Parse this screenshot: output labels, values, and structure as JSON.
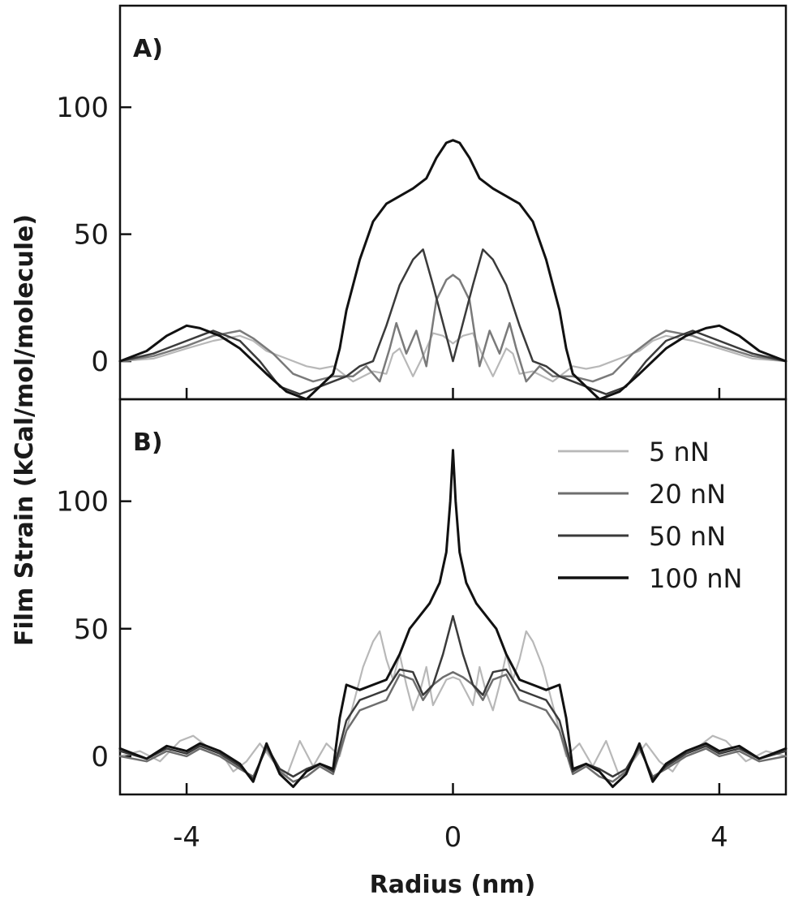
{
  "chart_data": [
    {
      "type": "line",
      "panel_label": "A)",
      "ylabel": "Film Strain (kCal/mol/molecule)",
      "xlabel": "Radius (nm)",
      "xlim": [
        -5,
        5
      ],
      "ylim": [
        -15,
        140
      ],
      "yticks": [
        "0",
        "50",
        "100"
      ],
      "xticks": [
        "-4",
        "0",
        "4"
      ],
      "series": [
        {
          "name": "5 nN",
          "color": "#b8b8b8",
          "width": 2.2,
          "x": [
            -5,
            -4.5,
            -4,
            -3.6,
            -3.2,
            -3,
            -2.8,
            -2.5,
            -2.2,
            -2,
            -1.8,
            -1.5,
            -1.2,
            -1,
            -0.9,
            -0.8,
            -0.6,
            -0.45,
            -0.3,
            -0.15,
            0,
            0.15,
            0.3,
            0.45,
            0.6,
            0.8,
            0.9,
            1,
            1.2,
            1.5,
            1.8,
            2,
            2.2,
            2.5,
            2.8,
            3,
            3.2,
            3.6,
            4,
            4.5,
            5
          ],
          "y": [
            0,
            1,
            5,
            8,
            10,
            8,
            4,
            1,
            -2,
            -3,
            -2,
            -8,
            -4,
            -5,
            3,
            5,
            -6,
            2,
            11,
            10,
            7,
            10,
            11,
            2,
            -6,
            5,
            3,
            -5,
            -4,
            -8,
            -2,
            -3,
            -2,
            1,
            4,
            8,
            10,
            8,
            5,
            1,
            0
          ]
        },
        {
          "name": "20 nN",
          "color": "#7a7a7a",
          "width": 2.5,
          "x": [
            -5,
            -4.5,
            -4,
            -3.6,
            -3.2,
            -3,
            -2.7,
            -2.4,
            -2.1,
            -1.8,
            -1.5,
            -1.3,
            -1.1,
            -0.95,
            -0.85,
            -0.7,
            -0.55,
            -0.4,
            -0.25,
            -0.1,
            0,
            0.1,
            0.25,
            0.4,
            0.55,
            0.7,
            0.85,
            0.95,
            1.1,
            1.3,
            1.5,
            1.8,
            2.1,
            2.4,
            2.7,
            3,
            3.2,
            3.6,
            4,
            4.5,
            5
          ],
          "y": [
            0,
            2,
            6,
            10,
            12,
            9,
            3,
            -5,
            -8,
            -6,
            -6,
            -2,
            -8,
            5,
            15,
            3,
            12,
            -2,
            24,
            32,
            34,
            32,
            24,
            -2,
            12,
            3,
            15,
            5,
            -8,
            -2,
            -6,
            -6,
            -8,
            -5,
            3,
            9,
            12,
            10,
            6,
            2,
            0
          ]
        },
        {
          "name": "50 nN",
          "color": "#3a3a3a",
          "width": 2.5,
          "x": [
            -5,
            -4.5,
            -4,
            -3.6,
            -3.2,
            -2.9,
            -2.6,
            -2.3,
            -2,
            -1.8,
            -1.6,
            -1.4,
            -1.2,
            -1,
            -0.8,
            -0.6,
            -0.45,
            -0.3,
            -0.15,
            0,
            0.15,
            0.3,
            0.45,
            0.6,
            0.8,
            1,
            1.2,
            1.4,
            1.6,
            1.8,
            2,
            2.3,
            2.6,
            2.9,
            3.2,
            3.6,
            4,
            4.5,
            5
          ],
          "y": [
            0,
            3,
            8,
            12,
            8,
            0,
            -10,
            -13,
            -10,
            -8,
            -6,
            -2,
            0,
            14,
            30,
            40,
            44,
            30,
            15,
            0,
            15,
            30,
            44,
            40,
            30,
            14,
            0,
            -2,
            -6,
            -8,
            -10,
            -13,
            -10,
            0,
            8,
            12,
            8,
            3,
            0
          ]
        },
        {
          "name": "100 nN",
          "color": "#111111",
          "width": 3,
          "x": [
            -5,
            -4.6,
            -4.3,
            -4,
            -3.8,
            -3.5,
            -3.2,
            -3,
            -2.8,
            -2.5,
            -2.2,
            -2,
            -1.8,
            -1.7,
            -1.6,
            -1.4,
            -1.2,
            -1,
            -0.8,
            -0.6,
            -0.4,
            -0.25,
            -0.1,
            0,
            0.1,
            0.25,
            0.4,
            0.6,
            0.8,
            1,
            1.2,
            1.4,
            1.6,
            1.7,
            1.8,
            2,
            2.2,
            2.5,
            2.8,
            3,
            3.2,
            3.5,
            3.8,
            4,
            4.3,
            4.6,
            5
          ],
          "y": [
            0,
            4,
            10,
            14,
            13,
            10,
            5,
            0,
            -5,
            -12,
            -15,
            -10,
            -5,
            5,
            20,
            40,
            55,
            62,
            65,
            68,
            72,
            80,
            86,
            87,
            86,
            80,
            72,
            68,
            65,
            62,
            55,
            40,
            20,
            5,
            -5,
            -10,
            -15,
            -12,
            -5,
            0,
            5,
            10,
            13,
            14,
            10,
            4,
            0
          ]
        }
      ]
    },
    {
      "type": "line",
      "panel_label": "B)",
      "ylabel": "Film Strain (kCal/mol/molecule)",
      "xlabel": "Radius (nm)",
      "xlim": [
        -5,
        5
      ],
      "ylim": [
        -15,
        140
      ],
      "yticks": [
        "0",
        "50",
        "100"
      ],
      "xticks": [
        "-4",
        "0",
        "4"
      ],
      "legend": {
        "position": "top-right",
        "entries": [
          "5 nN",
          "20 nN",
          "50 nN",
          "100 nN"
        ]
      },
      "series": [
        {
          "name": "5 nN",
          "color": "#b8b8b8",
          "width": 2.2,
          "x": [
            -5,
            -4.7,
            -4.4,
            -4.1,
            -3.9,
            -3.7,
            -3.5,
            -3.3,
            -3.1,
            -2.9,
            -2.7,
            -2.5,
            -2.3,
            -2.1,
            -1.9,
            -1.7,
            -1.5,
            -1.35,
            -1.2,
            -1.1,
            -1,
            -0.9,
            -0.8,
            -0.7,
            -0.6,
            -0.5,
            -0.4,
            -0.3,
            -0.2,
            -0.1,
            0,
            0.1,
            0.2,
            0.3,
            0.4,
            0.5,
            0.6,
            0.7,
            0.8,
            0.9,
            1,
            1.1,
            1.2,
            1.35,
            1.5,
            1.7,
            1.9,
            2.1,
            2.3,
            2.5,
            2.7,
            2.9,
            3.1,
            3.3,
            3.5,
            3.7,
            3.9,
            4.1,
            4.4,
            4.7,
            5
          ],
          "y": [
            0,
            2,
            -2,
            6,
            8,
            4,
            2,
            -6,
            -2,
            5,
            -2,
            -8,
            6,
            -4,
            5,
            0,
            20,
            35,
            45,
            49,
            38,
            30,
            40,
            28,
            18,
            25,
            35,
            20,
            25,
            30,
            31,
            30,
            25,
            20,
            35,
            25,
            18,
            28,
            40,
            30,
            38,
            49,
            45,
            35,
            20,
            0,
            5,
            -4,
            6,
            -8,
            -2,
            5,
            -2,
            -6,
            2,
            4,
            8,
            6,
            -2,
            2,
            0
          ]
        },
        {
          "name": "20 nN",
          "color": "#6e6e6e",
          "width": 2.5,
          "x": [
            -5,
            -4.6,
            -4.3,
            -4,
            -3.8,
            -3.5,
            -3.2,
            -3,
            -2.8,
            -2.6,
            -2.4,
            -2.2,
            -2,
            -1.8,
            -1.6,
            -1.4,
            -1.2,
            -1,
            -0.8,
            -0.6,
            -0.45,
            -0.3,
            -0.15,
            0,
            0.15,
            0.3,
            0.45,
            0.6,
            0.8,
            1,
            1.2,
            1.4,
            1.6,
            1.8,
            2,
            2.2,
            2.4,
            2.6,
            2.8,
            3,
            3.2,
            3.5,
            3.8,
            4,
            4.3,
            4.6,
            5
          ],
          "y": [
            0,
            -2,
            2,
            0,
            3,
            0,
            -5,
            -8,
            3,
            -6,
            -10,
            -8,
            -4,
            -7,
            10,
            18,
            20,
            22,
            32,
            30,
            22,
            28,
            31,
            33,
            31,
            28,
            22,
            30,
            32,
            22,
            20,
            18,
            10,
            -7,
            -4,
            -8,
            -10,
            -6,
            3,
            -8,
            -5,
            0,
            3,
            0,
            2,
            -2,
            0
          ]
        },
        {
          "name": "50 nN",
          "color": "#3a3a3a",
          "width": 2.5,
          "x": [
            -5,
            -4.6,
            -4.3,
            -4,
            -3.8,
            -3.5,
            -3.2,
            -3,
            -2.8,
            -2.6,
            -2.4,
            -2.2,
            -2,
            -1.8,
            -1.6,
            -1.4,
            -1.2,
            -1,
            -0.8,
            -0.6,
            -0.45,
            -0.3,
            -0.15,
            -0.05,
            0,
            0.05,
            0.15,
            0.3,
            0.45,
            0.6,
            0.8,
            1,
            1.2,
            1.4,
            1.6,
            1.8,
            2,
            2.2,
            2.4,
            2.6,
            2.8,
            3,
            3.2,
            3.5,
            3.8,
            4,
            4.3,
            4.6,
            5
          ],
          "y": [
            2,
            -1,
            3,
            1,
            4,
            1,
            -4,
            -9,
            4,
            -5,
            -8,
            -5,
            -3,
            -6,
            14,
            22,
            24,
            26,
            34,
            33,
            24,
            28,
            40,
            50,
            55,
            50,
            40,
            28,
            24,
            33,
            34,
            26,
            24,
            22,
            14,
            -6,
            -3,
            -5,
            -8,
            -5,
            4,
            -9,
            -4,
            1,
            4,
            1,
            3,
            -1,
            2
          ]
        },
        {
          "name": "100 nN",
          "color": "#111111",
          "width": 3,
          "x": [
            -5,
            -4.6,
            -4.3,
            -4,
            -3.8,
            -3.5,
            -3.2,
            -3,
            -2.8,
            -2.6,
            -2.4,
            -2.2,
            -2,
            -1.8,
            -1.7,
            -1.6,
            -1.4,
            -1.2,
            -1,
            -0.8,
            -0.65,
            -0.5,
            -0.35,
            -0.2,
            -0.1,
            -0.04,
            0,
            0.04,
            0.1,
            0.2,
            0.35,
            0.5,
            0.65,
            0.8,
            1,
            1.2,
            1.4,
            1.6,
            1.7,
            1.8,
            2,
            2.2,
            2.4,
            2.6,
            2.8,
            3,
            3.2,
            3.5,
            3.8,
            4,
            4.3,
            4.6,
            5
          ],
          "y": [
            3,
            -1,
            4,
            2,
            5,
            2,
            -3,
            -10,
            5,
            -7,
            -12,
            -6,
            -3,
            -5,
            15,
            28,
            26,
            28,
            30,
            40,
            50,
            55,
            60,
            68,
            80,
            100,
            120,
            100,
            80,
            68,
            60,
            55,
            50,
            40,
            30,
            28,
            26,
            28,
            15,
            -5,
            -3,
            -6,
            -12,
            -7,
            5,
            -10,
            -3,
            2,
            5,
            2,
            4,
            -1,
            3
          ]
        }
      ]
    }
  ]
}
